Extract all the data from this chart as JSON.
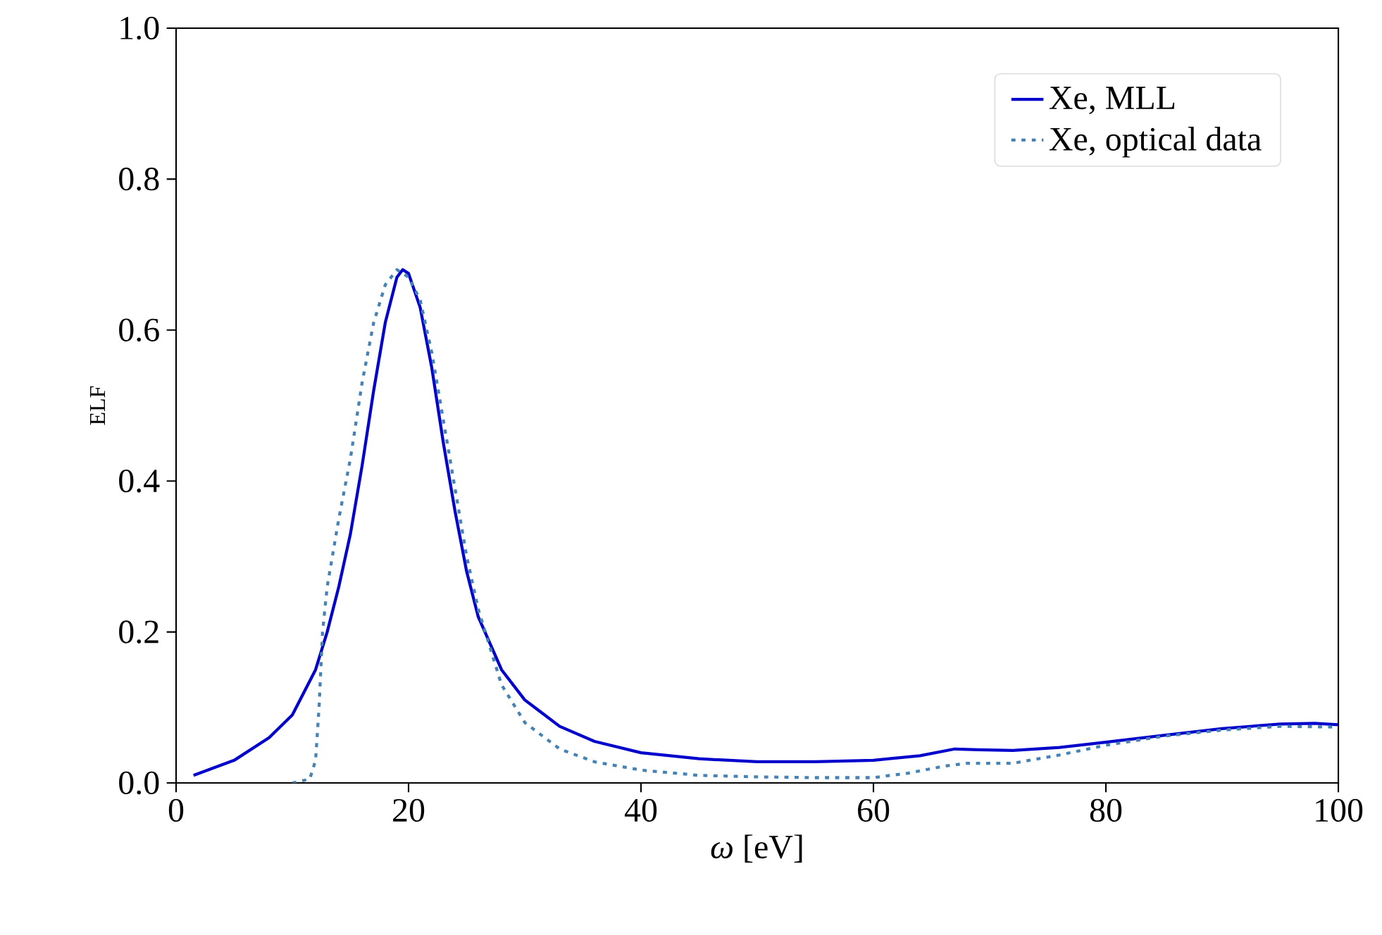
{
  "chart_data": {
    "type": "line",
    "xlabel": "*ω* [eV]",
    "ylabel": "ELF",
    "xlim": [
      0,
      100
    ],
    "ylim": [
      0,
      1.0
    ],
    "xticks": [
      0,
      20,
      40,
      60,
      80,
      100
    ],
    "yticks": [
      {
        "value": 0,
        "label": "0.0"
      },
      {
        "value": 0.2,
        "label": "0.2"
      },
      {
        "value": 0.4,
        "label": "0.4"
      },
      {
        "value": 0.6,
        "label": "0.6"
      },
      {
        "value": 0.8,
        "label": "0.8"
      },
      {
        "value": 1.0,
        "label": "1.0"
      }
    ],
    "legend": "top right",
    "series": [
      {
        "name": "Xe, MLL",
        "color": "#0000cc",
        "line_style": "solid",
        "x": [
          1.5,
          5,
          8,
          10,
          12,
          13,
          14,
          15,
          16,
          17,
          18,
          19,
          19.5,
          20,
          21,
          22,
          23,
          24,
          25,
          26,
          28,
          30,
          33,
          36,
          40,
          45,
          50,
          55,
          60,
          64,
          67,
          69,
          72,
          76,
          80,
          85,
          90,
          95,
          98,
          100
        ],
        "values": [
          0.01,
          0.03,
          0.06,
          0.09,
          0.15,
          0.2,
          0.26,
          0.33,
          0.42,
          0.52,
          0.61,
          0.67,
          0.68,
          0.675,
          0.63,
          0.55,
          0.45,
          0.36,
          0.28,
          0.22,
          0.15,
          0.11,
          0.075,
          0.055,
          0.04,
          0.032,
          0.028,
          0.028,
          0.03,
          0.036,
          0.045,
          0.044,
          0.043,
          0.047,
          0.054,
          0.063,
          0.072,
          0.078,
          0.079,
          0.077
        ]
      },
      {
        "name": "Xe, optical data",
        "color": "#4682b4",
        "line_style": "dotted",
        "x": [
          10,
          11.5,
          12,
          12.3,
          12.6,
          13,
          14,
          15,
          16,
          17,
          18,
          19,
          20,
          21,
          22,
          23,
          24,
          25,
          26,
          28,
          30,
          33,
          36,
          40,
          45,
          50,
          55,
          60,
          63,
          66,
          68,
          72,
          76,
          80,
          85,
          90,
          95,
          100
        ],
        "values": [
          0,
          0.005,
          0.03,
          0.1,
          0.2,
          0.26,
          0.35,
          0.43,
          0.53,
          0.61,
          0.66,
          0.68,
          0.67,
          0.64,
          0.57,
          0.48,
          0.39,
          0.3,
          0.23,
          0.13,
          0.08,
          0.045,
          0.028,
          0.017,
          0.01,
          0.008,
          0.007,
          0.007,
          0.013,
          0.022,
          0.026,
          0.026,
          0.037,
          0.05,
          0.062,
          0.07,
          0.075,
          0.074
        ]
      }
    ]
  }
}
